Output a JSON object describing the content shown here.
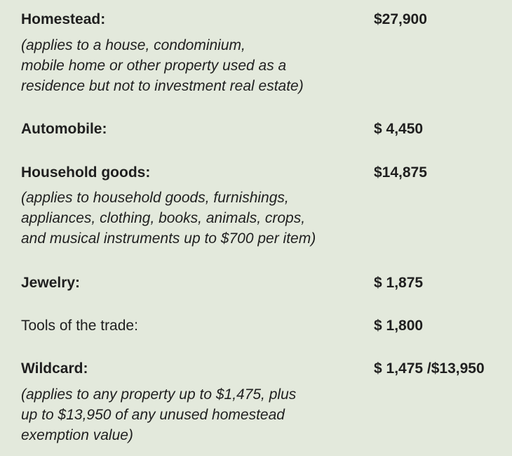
{
  "items": [
    {
      "label": "Homestead:",
      "value": "$27,900",
      "note_lines": [
        "(applies to a house, condominium,",
        "mobile home or other property used as a",
        "residence but not to investment real estate)"
      ]
    },
    {
      "label": "Automobile:",
      "value": "$ 4,450"
    },
    {
      "label": "Household goods:",
      "value": "$14,875",
      "note_lines": [
        "(applies to household goods, furnishings,",
        "appliances, clothing, books, animals, crops,",
        "and musical instruments up to $700 per item)"
      ]
    },
    {
      "label": "Jewelry:",
      "value": "$ 1,875"
    },
    {
      "label": "Tools of the trade:",
      "value": "$ 1,800"
    },
    {
      "label": "Wildcard:",
      "value": "$ 1,475 /$13,950",
      "note_lines": [
        "(applies to any property up to $1,475, plus",
        "up to $13,950 of any unused homestead",
        "exemption value)"
      ]
    }
  ]
}
